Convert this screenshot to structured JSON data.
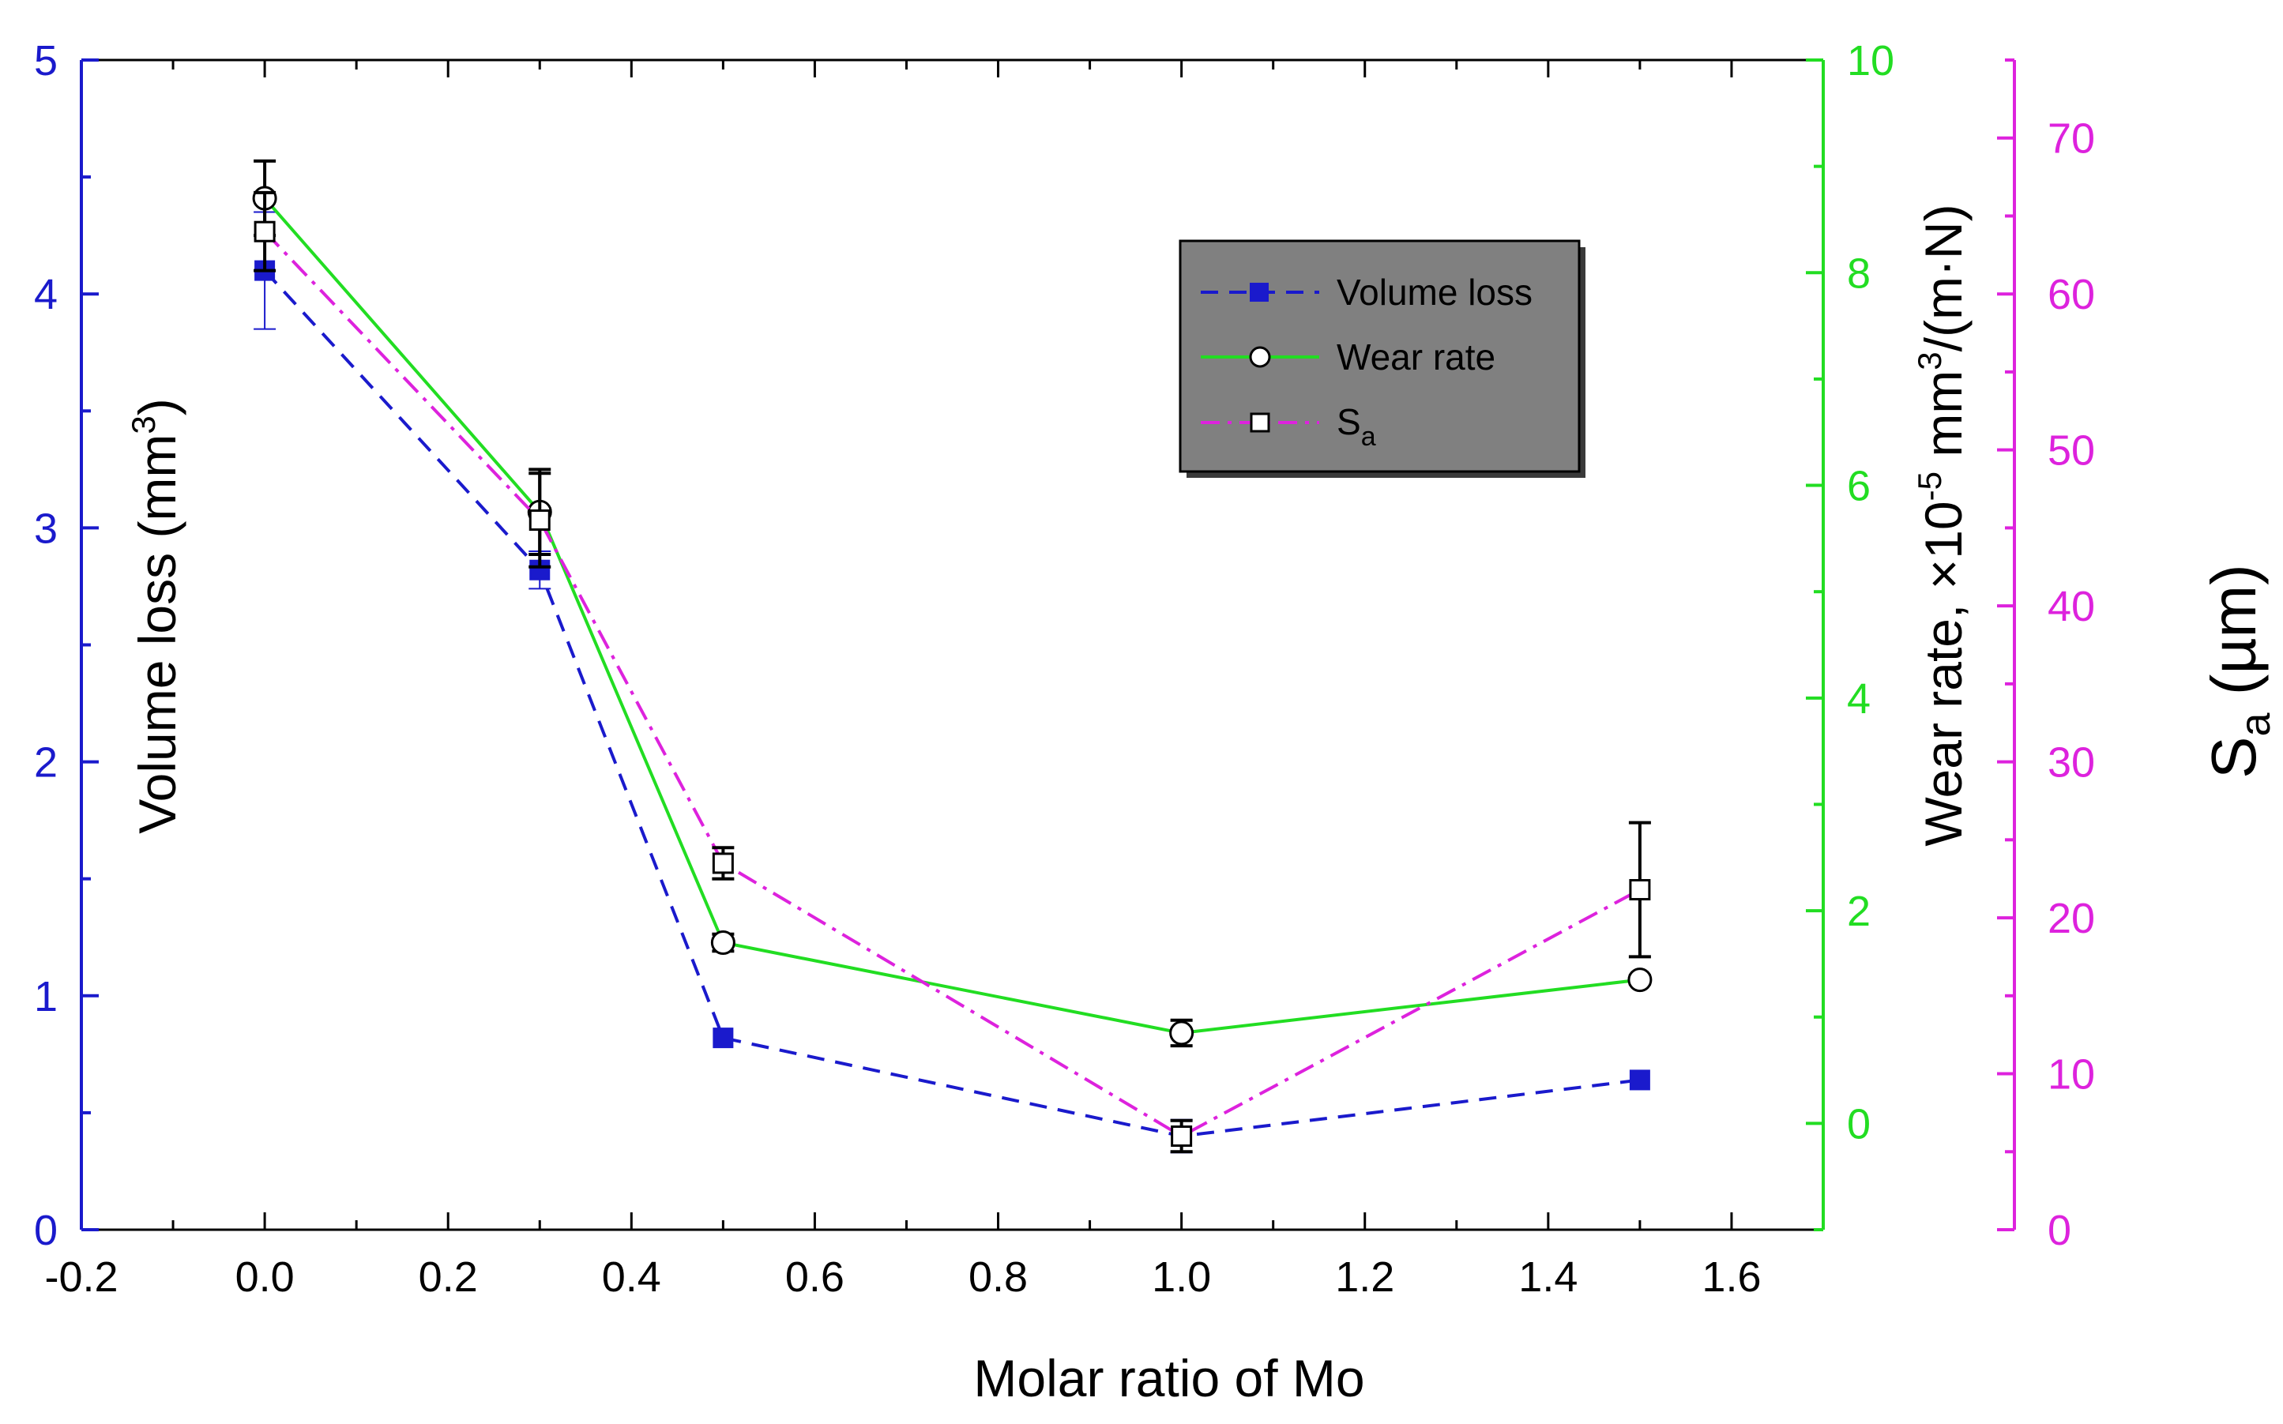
{
  "chart_data": {
    "type": "line",
    "xlabel": "Molar ratio of Mo",
    "x_axis": {
      "range": [
        -0.2,
        1.7
      ],
      "ticks": [
        -0.2,
        0.0,
        0.2,
        0.4,
        0.6,
        0.8,
        1.0,
        1.2,
        1.4,
        1.6
      ],
      "tick_labels": [
        "-0.2",
        "0.0",
        "0.2",
        "0.4",
        "0.6",
        "0.8",
        "1.0",
        "1.2",
        "1.4",
        "1.6"
      ]
    },
    "y_axes": {
      "volume_loss": {
        "label_main": "Volume loss (mm",
        "label_sup": "3",
        "label_end": ")",
        "range": [
          0,
          5
        ],
        "ticks": [
          0,
          1,
          2,
          3,
          4,
          5
        ],
        "tick_labels": [
          "0",
          "1",
          "2",
          "3",
          "4",
          "5"
        ],
        "color": "#1a1acc"
      },
      "wear_rate": {
        "label_main": "Wear rate, ×10",
        "label_sup": "-5",
        "label_mid": " mm",
        "label_sup2": "3",
        "label_end": "/(m·N)",
        "range": [
          -1,
          10
        ],
        "ticks": [
          0,
          2,
          4,
          6,
          8,
          10
        ],
        "tick_labels": [
          "0",
          "2",
          "4",
          "6",
          "8",
          "10"
        ],
        "color": "#22dd22"
      },
      "sa": {
        "label_main": "S",
        "label_sub": "a",
        "label_end": " (µm)",
        "range": [
          0,
          75
        ],
        "ticks": [
          0,
          10,
          20,
          30,
          40,
          50,
          60,
          70
        ],
        "tick_labels": [
          "0",
          "10",
          "20",
          "30",
          "40",
          "50",
          "60",
          "70"
        ],
        "color": "#dd22dd"
      }
    },
    "x": [
      0.0,
      0.3,
      0.5,
      1.0,
      1.5
    ],
    "series": [
      {
        "name": "Volume loss",
        "axis": "volume_loss",
        "values": [
          4.1,
          2.82,
          0.82,
          0.4,
          0.64
        ],
        "errors": [
          0.25,
          0.08,
          0.0,
          0.07,
          0.0
        ],
        "color": "#1a1acc",
        "line": "dashed",
        "marker": "filled-square"
      },
      {
        "name": "Wear rate",
        "axis": "wear_rate",
        "values": [
          8.7,
          5.75,
          1.7,
          0.85,
          1.35
        ],
        "errors": [
          0.35,
          0.4,
          0.08,
          0.12,
          0.04
        ],
        "color": "#22dd22",
        "line": "solid",
        "marker": "open-circle"
      },
      {
        "name_main": "S",
        "name_sub": "a",
        "axis": "sa",
        "values": [
          64.0,
          45.5,
          23.5,
          6.0,
          21.8
        ],
        "errors": [
          2.5,
          3.0,
          1.0,
          1.0,
          4.3
        ],
        "color": "#dd22dd",
        "line": "dash-dot",
        "marker": "open-square"
      }
    ],
    "legend": {
      "placement": "top-right",
      "background": "#808080"
    }
  }
}
